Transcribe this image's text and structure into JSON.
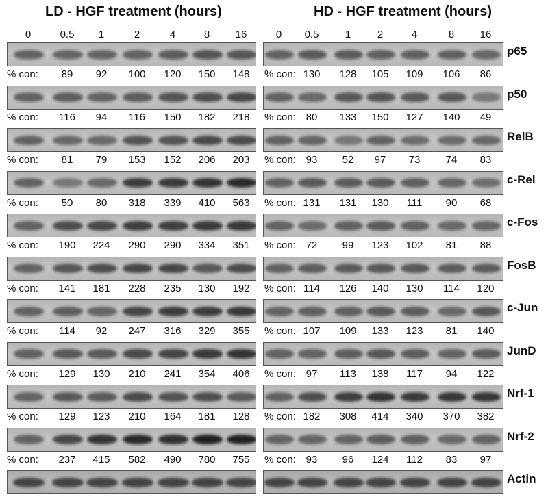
{
  "titles": {
    "ld": "LD - HGF treatment (hours)",
    "hd": "HD - HGF treatment (hours)"
  },
  "timepoints": [
    "0",
    "0.5",
    "1",
    "2",
    "4",
    "8",
    "16"
  ],
  "con_label": "% con:",
  "rows": [
    {
      "protein": "p65",
      "ld": [
        "89",
        "92",
        "100",
        "120",
        "150",
        "148"
      ],
      "hd": [
        "130",
        "128",
        "105",
        "109",
        "106",
        "86"
      ]
    },
    {
      "protein": "p50",
      "ld": [
        "116",
        "94",
        "116",
        "150",
        "182",
        "218"
      ],
      "hd": [
        "80",
        "133",
        "150",
        "127",
        "140",
        "49"
      ]
    },
    {
      "protein": "RelB",
      "ld": [
        "81",
        "79",
        "153",
        "152",
        "206",
        "203"
      ],
      "hd": [
        "93",
        "52",
        "97",
        "73",
        "74",
        "83"
      ]
    },
    {
      "protein": "c-Rel",
      "ld": [
        "50",
        "80",
        "318",
        "339",
        "410",
        "563"
      ],
      "hd": [
        "131",
        "131",
        "130",
        "111",
        "90",
        "68"
      ]
    },
    {
      "protein": "c-Fos",
      "ld": [
        "190",
        "224",
        "290",
        "290",
        "334",
        "351"
      ],
      "hd": [
        "72",
        "99",
        "123",
        "102",
        "81",
        "88"
      ]
    },
    {
      "protein": "FosB",
      "ld": [
        "141",
        "181",
        "228",
        "235",
        "130",
        "192"
      ],
      "hd": [
        "114",
        "126",
        "140",
        "130",
        "114",
        "120"
      ]
    },
    {
      "protein": "c-Jun",
      "ld": [
        "114",
        "92",
        "247",
        "316",
        "329",
        "355"
      ],
      "hd": [
        "107",
        "109",
        "133",
        "123",
        "81",
        "140"
      ]
    },
    {
      "protein": "JunD",
      "ld": [
        "129",
        "130",
        "210",
        "241",
        "354",
        "406"
      ],
      "hd": [
        "97",
        "113",
        "138",
        "117",
        "94",
        "122"
      ]
    },
    {
      "protein": "Nrf-1",
      "ld": [
        "129",
        "123",
        "210",
        "164",
        "181",
        "128"
      ],
      "hd": [
        "182",
        "308",
        "414",
        "340",
        "370",
        "382"
      ]
    },
    {
      "protein": "Nrf-2",
      "ld": [
        "237",
        "415",
        "582",
        "490",
        "780",
        "755"
      ],
      "hd": [
        "93",
        "96",
        "124",
        "112",
        "83",
        "97"
      ]
    }
  ],
  "actin": "Actin"
}
